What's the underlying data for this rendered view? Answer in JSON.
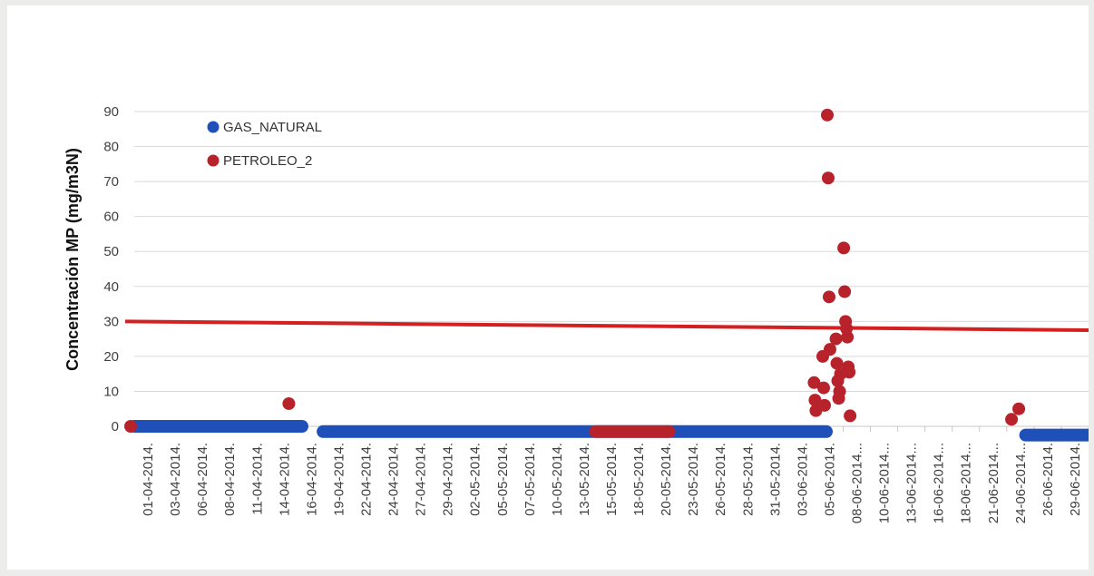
{
  "chart_data": {
    "type": "scatter",
    "title": "",
    "xlabel": "",
    "ylabel": "Concentración MP (mg/m3N)",
    "ylim": [
      0,
      90
    ],
    "yticks": [
      0,
      10,
      20,
      30,
      40,
      50,
      60,
      70,
      80,
      90
    ],
    "xlim": [
      "2014-04-01",
      "2014-07-01"
    ],
    "grid": true,
    "legend_position": "top-left",
    "x_tick_labels": [
      "01-04-2014.",
      "03-04-2014.",
      "06-04-2014.",
      "08-04-2014.",
      "11-04-2014.",
      "14-04-2014.",
      "16-04-2014.",
      "19-04-2014.",
      "22-04-2014.",
      "24-04-2014.",
      "27-04-2014.",
      "29-04-2014.",
      "02-05-2014.",
      "05-05-2014.",
      "07-05-2014.",
      "10-05-2014.",
      "13-05-2014.",
      "15-05-2014.",
      "18-05-2014.",
      "20-05-2014.",
      "23-05-2014.",
      "26-05-2014.",
      "28-05-2014.",
      "31-05-2014.",
      "03-06-2014.",
      "05-06-2014.",
      "08-06-2014...",
      "10-06-2014...",
      "13-06-2014...",
      "16-06-2014...",
      "18-06-2014...",
      "21-06-2014...",
      "24-06-2014...",
      "26-06-2014.",
      "29-06-2014."
    ],
    "reference_line": {
      "value": 30,
      "value_end": 27.5,
      "color": "#d42020"
    },
    "series": [
      {
        "name": "GAS_NATURAL",
        "color": "#1f4fb8",
        "segments": [
          {
            "from": "2014-04-01",
            "to": "2014-04-17",
            "y": 0
          },
          {
            "from": "2014-04-19",
            "to": "2014-06-06",
            "y": -1.5
          },
          {
            "from": "2014-06-25",
            "to": "2014-07-01",
            "y": -2.5
          }
        ]
      },
      {
        "name": "PETROLEO_2",
        "color": "#b8232b",
        "segments": [
          {
            "from": "2014-05-15",
            "to": "2014-05-22",
            "y": -1.5
          }
        ],
        "points": [
          {
            "x": "2014-04-01",
            "y": 0
          },
          {
            "x": "2014-04-16",
            "y": 6.5
          },
          {
            "x": "2014-06-05",
            "y": 12.5
          },
          {
            "x": "2014-06-05",
            "y": 7.5
          },
          {
            "x": "2014-06-05",
            "y": 4.5
          },
          {
            "x": "2014-06-06",
            "y": 89
          },
          {
            "x": "2014-06-06",
            "y": 71
          },
          {
            "x": "2014-06-06",
            "y": 37
          },
          {
            "x": "2014-06-06",
            "y": 22
          },
          {
            "x": "2014-06-06",
            "y": 20
          },
          {
            "x": "2014-06-06",
            "y": 11
          },
          {
            "x": "2014-06-06",
            "y": 6
          },
          {
            "x": "2014-06-07",
            "y": 25
          },
          {
            "x": "2014-06-07",
            "y": 18
          },
          {
            "x": "2014-06-07",
            "y": 13
          },
          {
            "x": "2014-06-07",
            "y": 8
          },
          {
            "x": "2014-06-07",
            "y": 10
          },
          {
            "x": "2014-06-07",
            "y": 15
          },
          {
            "x": "2014-06-08",
            "y": 51
          },
          {
            "x": "2014-06-08",
            "y": 38.5
          },
          {
            "x": "2014-06-08",
            "y": 30
          },
          {
            "x": "2014-06-08",
            "y": 28
          },
          {
            "x": "2014-06-08",
            "y": 25.5
          },
          {
            "x": "2014-06-08",
            "y": 17
          },
          {
            "x": "2014-06-08",
            "y": 15.5
          },
          {
            "x": "2014-06-08",
            "y": 3
          },
          {
            "x": "2014-06-24",
            "y": 5
          },
          {
            "x": "2014-06-24",
            "y": 2
          }
        ]
      }
    ]
  }
}
